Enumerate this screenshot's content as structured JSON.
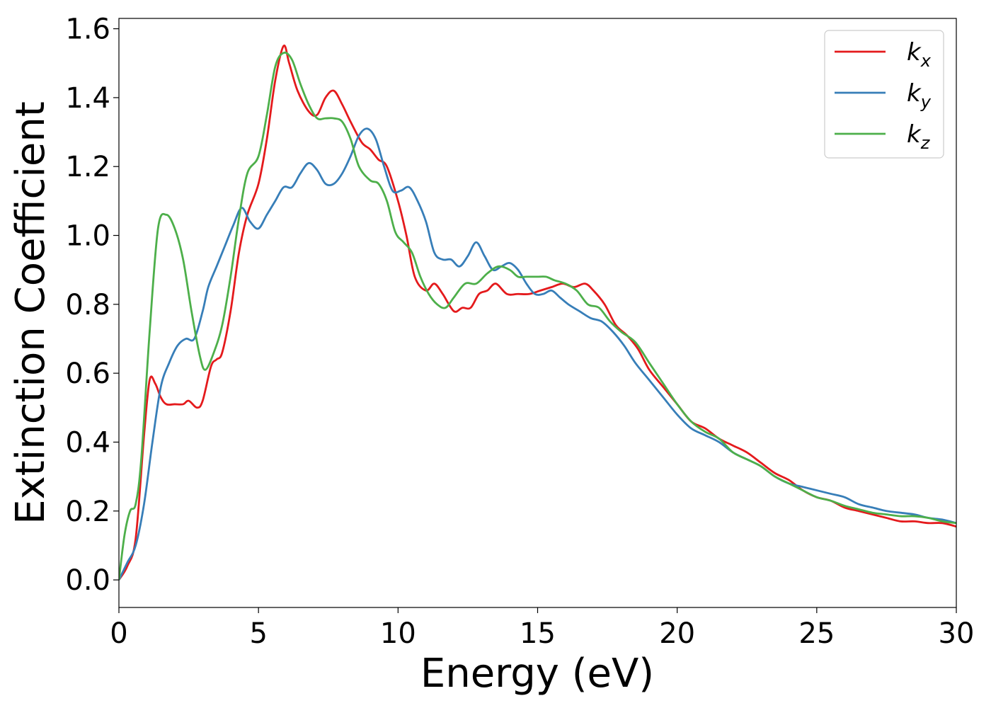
{
  "chart_data": {
    "type": "line",
    "title": "",
    "xlabel": "Energy (eV)",
    "ylabel": "Extinction Coefficient",
    "xlim": [
      0,
      30
    ],
    "ylim": [
      -0.08,
      1.63
    ],
    "x_ticks": [
      0,
      5,
      10,
      15,
      20,
      25,
      30
    ],
    "x_tick_labels": [
      "0",
      "5",
      "10",
      "15",
      "20",
      "25",
      "30"
    ],
    "y_ticks": [
      0.0,
      0.2,
      0.4,
      0.6,
      0.8,
      1.0,
      1.2,
      1.4,
      1.6
    ],
    "y_tick_labels": [
      "0.0",
      "0.2",
      "0.4",
      "0.6",
      "0.8",
      "1.0",
      "1.2",
      "1.4",
      "1.6"
    ],
    "grid": false,
    "legend_position": "top-right",
    "series": [
      {
        "name": "k",
        "sub": "x",
        "color": "#e41a1c",
        "points": [
          [
            0,
            0
          ],
          [
            0.3,
            0.04
          ],
          [
            0.6,
            0.12
          ],
          [
            0.9,
            0.42
          ],
          [
            1.1,
            0.58
          ],
          [
            1.3,
            0.57
          ],
          [
            1.5,
            0.53
          ],
          [
            1.7,
            0.51
          ],
          [
            2.0,
            0.51
          ],
          [
            2.3,
            0.51
          ],
          [
            2.5,
            0.52
          ],
          [
            2.8,
            0.5
          ],
          [
            3.0,
            0.52
          ],
          [
            3.3,
            0.62
          ],
          [
            3.5,
            0.64
          ],
          [
            3.7,
            0.66
          ],
          [
            4.0,
            0.78
          ],
          [
            4.3,
            0.95
          ],
          [
            4.6,
            1.06
          ],
          [
            5.0,
            1.15
          ],
          [
            5.3,
            1.28
          ],
          [
            5.6,
            1.45
          ],
          [
            5.9,
            1.55
          ],
          [
            6.1,
            1.5
          ],
          [
            6.4,
            1.42
          ],
          [
            6.8,
            1.36
          ],
          [
            7.1,
            1.35
          ],
          [
            7.4,
            1.4
          ],
          [
            7.7,
            1.42
          ],
          [
            8.0,
            1.38
          ],
          [
            8.3,
            1.33
          ],
          [
            8.7,
            1.27
          ],
          [
            9.0,
            1.25
          ],
          [
            9.3,
            1.22
          ],
          [
            9.6,
            1.2
          ],
          [
            10.0,
            1.1
          ],
          [
            10.3,
            1.0
          ],
          [
            10.6,
            0.88
          ],
          [
            11.0,
            0.84
          ],
          [
            11.3,
            0.86
          ],
          [
            11.6,
            0.83
          ],
          [
            12.0,
            0.78
          ],
          [
            12.3,
            0.79
          ],
          [
            12.6,
            0.79
          ],
          [
            12.9,
            0.83
          ],
          [
            13.2,
            0.84
          ],
          [
            13.5,
            0.86
          ],
          [
            13.9,
            0.83
          ],
          [
            14.3,
            0.83
          ],
          [
            14.7,
            0.83
          ],
          [
            15.1,
            0.84
          ],
          [
            15.5,
            0.85
          ],
          [
            15.9,
            0.86
          ],
          [
            16.3,
            0.85
          ],
          [
            16.7,
            0.86
          ],
          [
            17.0,
            0.84
          ],
          [
            17.4,
            0.8
          ],
          [
            17.8,
            0.74
          ],
          [
            18.2,
            0.71
          ],
          [
            18.6,
            0.67
          ],
          [
            19.0,
            0.61
          ],
          [
            19.5,
            0.56
          ],
          [
            20.0,
            0.51
          ],
          [
            20.5,
            0.46
          ],
          [
            21.0,
            0.44
          ],
          [
            21.5,
            0.41
          ],
          [
            22.0,
            0.39
          ],
          [
            22.5,
            0.37
          ],
          [
            23.0,
            0.34
          ],
          [
            23.5,
            0.31
          ],
          [
            24.0,
            0.29
          ],
          [
            24.5,
            0.26
          ],
          [
            25.0,
            0.24
          ],
          [
            25.5,
            0.23
          ],
          [
            26.0,
            0.21
          ],
          [
            26.5,
            0.2
          ],
          [
            27.0,
            0.19
          ],
          [
            27.5,
            0.18
          ],
          [
            28.0,
            0.17
          ],
          [
            28.5,
            0.17
          ],
          [
            29.0,
            0.165
          ],
          [
            29.5,
            0.165
          ],
          [
            30.0,
            0.155
          ]
        ]
      },
      {
        "name": "k",
        "sub": "y",
        "color": "#377eb8",
        "points": [
          [
            0,
            0
          ],
          [
            0.3,
            0.05
          ],
          [
            0.6,
            0.1
          ],
          [
            0.9,
            0.22
          ],
          [
            1.2,
            0.4
          ],
          [
            1.5,
            0.56
          ],
          [
            1.8,
            0.63
          ],
          [
            2.1,
            0.68
          ],
          [
            2.4,
            0.7
          ],
          [
            2.7,
            0.7
          ],
          [
            3.0,
            0.78
          ],
          [
            3.2,
            0.85
          ],
          [
            3.5,
            0.91
          ],
          [
            3.8,
            0.97
          ],
          [
            4.1,
            1.03
          ],
          [
            4.4,
            1.08
          ],
          [
            4.7,
            1.04
          ],
          [
            5.0,
            1.02
          ],
          [
            5.3,
            1.06
          ],
          [
            5.6,
            1.1
          ],
          [
            5.9,
            1.14
          ],
          [
            6.2,
            1.14
          ],
          [
            6.5,
            1.18
          ],
          [
            6.8,
            1.21
          ],
          [
            7.1,
            1.19
          ],
          [
            7.4,
            1.15
          ],
          [
            7.7,
            1.15
          ],
          [
            8.0,
            1.18
          ],
          [
            8.3,
            1.23
          ],
          [
            8.6,
            1.29
          ],
          [
            8.9,
            1.31
          ],
          [
            9.2,
            1.28
          ],
          [
            9.5,
            1.2
          ],
          [
            9.8,
            1.13
          ],
          [
            10.1,
            1.13
          ],
          [
            10.4,
            1.14
          ],
          [
            10.7,
            1.1
          ],
          [
            11.0,
            1.04
          ],
          [
            11.3,
            0.95
          ],
          [
            11.6,
            0.93
          ],
          [
            11.9,
            0.93
          ],
          [
            12.2,
            0.91
          ],
          [
            12.5,
            0.94
          ],
          [
            12.8,
            0.98
          ],
          [
            13.1,
            0.94
          ],
          [
            13.4,
            0.9
          ],
          [
            13.7,
            0.91
          ],
          [
            14.0,
            0.92
          ],
          [
            14.3,
            0.9
          ],
          [
            14.6,
            0.86
          ],
          [
            14.9,
            0.83
          ],
          [
            15.2,
            0.83
          ],
          [
            15.5,
            0.84
          ],
          [
            15.8,
            0.82
          ],
          [
            16.1,
            0.8
          ],
          [
            16.5,
            0.78
          ],
          [
            16.9,
            0.76
          ],
          [
            17.3,
            0.75
          ],
          [
            17.7,
            0.72
          ],
          [
            18.1,
            0.68
          ],
          [
            18.5,
            0.63
          ],
          [
            19.0,
            0.58
          ],
          [
            19.5,
            0.53
          ],
          [
            20.0,
            0.48
          ],
          [
            20.5,
            0.44
          ],
          [
            21.0,
            0.42
          ],
          [
            21.5,
            0.4
          ],
          [
            22.0,
            0.37
          ],
          [
            22.5,
            0.35
          ],
          [
            23.0,
            0.33
          ],
          [
            23.5,
            0.3
          ],
          [
            24.0,
            0.28
          ],
          [
            24.5,
            0.27
          ],
          [
            25.0,
            0.26
          ],
          [
            25.5,
            0.25
          ],
          [
            26.0,
            0.24
          ],
          [
            26.5,
            0.22
          ],
          [
            27.0,
            0.21
          ],
          [
            27.5,
            0.2
          ],
          [
            28.0,
            0.195
          ],
          [
            28.5,
            0.19
          ],
          [
            29.0,
            0.18
          ],
          [
            29.5,
            0.175
          ],
          [
            30.0,
            0.165
          ]
        ]
      },
      {
        "name": "k",
        "sub": "z",
        "color": "#4daf4a",
        "points": [
          [
            0,
            0
          ],
          [
            0.2,
            0.13
          ],
          [
            0.4,
            0.2
          ],
          [
            0.6,
            0.22
          ],
          [
            0.8,
            0.35
          ],
          [
            1.1,
            0.72
          ],
          [
            1.4,
            1.02
          ],
          [
            1.7,
            1.06
          ],
          [
            2.0,
            1.02
          ],
          [
            2.3,
            0.93
          ],
          [
            2.6,
            0.78
          ],
          [
            2.9,
            0.65
          ],
          [
            3.1,
            0.61
          ],
          [
            3.4,
            0.66
          ],
          [
            3.7,
            0.74
          ],
          [
            4.0,
            0.88
          ],
          [
            4.3,
            1.05
          ],
          [
            4.6,
            1.18
          ],
          [
            5.0,
            1.23
          ],
          [
            5.3,
            1.35
          ],
          [
            5.6,
            1.49
          ],
          [
            5.9,
            1.53
          ],
          [
            6.2,
            1.51
          ],
          [
            6.5,
            1.44
          ],
          [
            6.8,
            1.38
          ],
          [
            7.1,
            1.34
          ],
          [
            7.4,
            1.34
          ],
          [
            7.7,
            1.34
          ],
          [
            8.0,
            1.33
          ],
          [
            8.3,
            1.28
          ],
          [
            8.6,
            1.2
          ],
          [
            9.0,
            1.16
          ],
          [
            9.3,
            1.15
          ],
          [
            9.6,
            1.1
          ],
          [
            9.9,
            1.01
          ],
          [
            10.2,
            0.98
          ],
          [
            10.5,
            0.95
          ],
          [
            10.8,
            0.88
          ],
          [
            11.1,
            0.83
          ],
          [
            11.4,
            0.8
          ],
          [
            11.7,
            0.79
          ],
          [
            12.0,
            0.82
          ],
          [
            12.4,
            0.86
          ],
          [
            12.8,
            0.86
          ],
          [
            13.2,
            0.89
          ],
          [
            13.6,
            0.91
          ],
          [
            14.0,
            0.9
          ],
          [
            14.3,
            0.88
          ],
          [
            14.6,
            0.88
          ],
          [
            15.0,
            0.88
          ],
          [
            15.3,
            0.88
          ],
          [
            15.6,
            0.87
          ],
          [
            16.0,
            0.86
          ],
          [
            16.4,
            0.84
          ],
          [
            16.8,
            0.8
          ],
          [
            17.2,
            0.79
          ],
          [
            17.6,
            0.75
          ],
          [
            18.0,
            0.72
          ],
          [
            18.5,
            0.69
          ],
          [
            19.0,
            0.63
          ],
          [
            19.5,
            0.57
          ],
          [
            20.0,
            0.51
          ],
          [
            20.5,
            0.46
          ],
          [
            21.0,
            0.43
          ],
          [
            21.5,
            0.41
          ],
          [
            22.0,
            0.37
          ],
          [
            22.5,
            0.35
          ],
          [
            23.0,
            0.33
          ],
          [
            23.5,
            0.3
          ],
          [
            24.0,
            0.28
          ],
          [
            24.5,
            0.26
          ],
          [
            25.0,
            0.24
          ],
          [
            25.5,
            0.23
          ],
          [
            26.0,
            0.215
          ],
          [
            26.5,
            0.205
          ],
          [
            27.0,
            0.195
          ],
          [
            27.5,
            0.19
          ],
          [
            28.0,
            0.185
          ],
          [
            28.5,
            0.185
          ],
          [
            29.0,
            0.18
          ],
          [
            29.5,
            0.17
          ],
          [
            30.0,
            0.165
          ]
        ]
      }
    ]
  }
}
